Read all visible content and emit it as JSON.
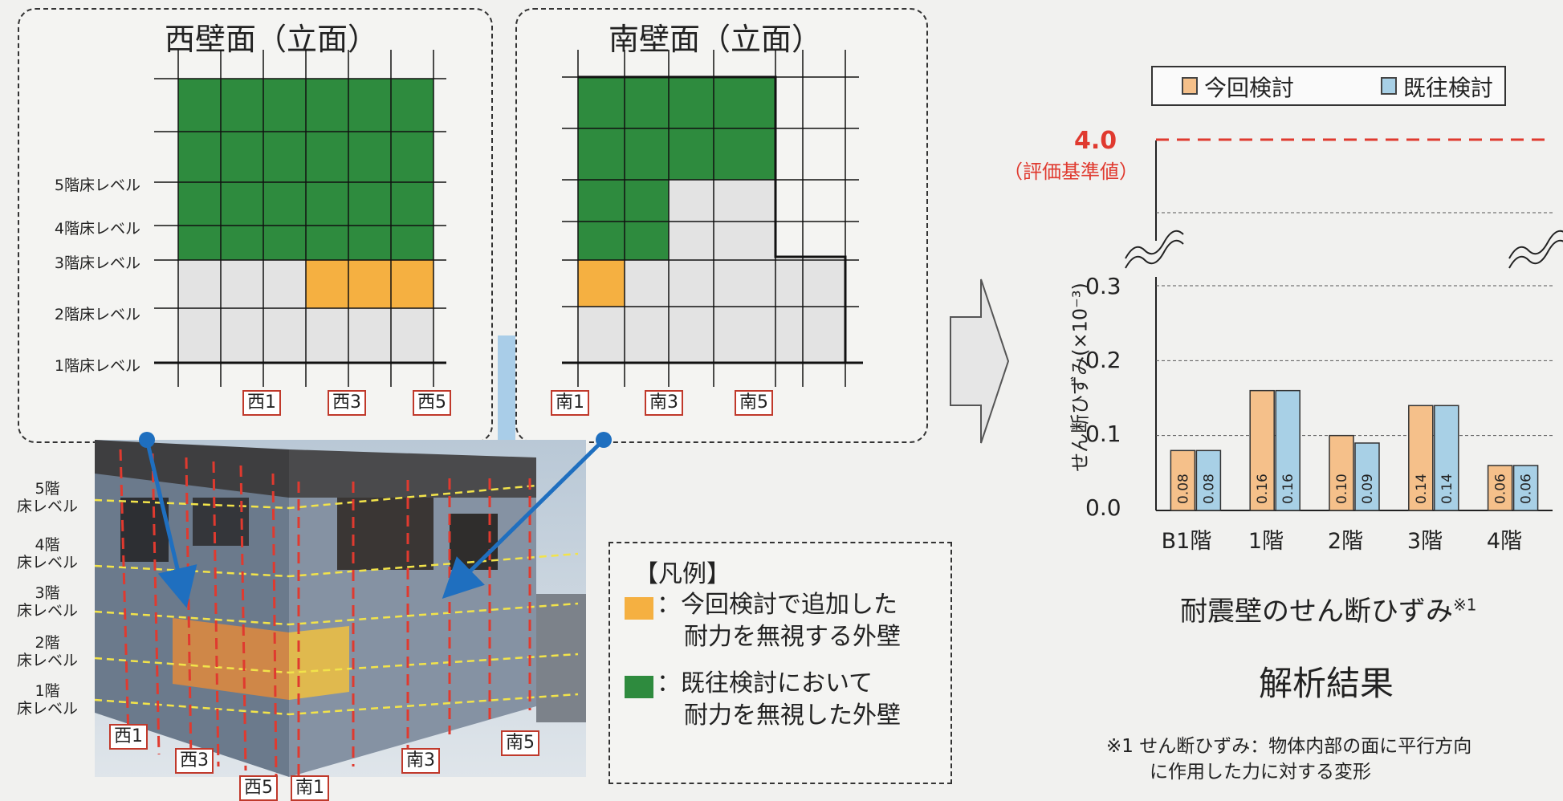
{
  "west_panel": {
    "title": "西壁面（立面）",
    "floor_labels": [
      "5階床レベル",
      "4階床レベル",
      "3階床レベル",
      "2階床レベル",
      "1階床レベル"
    ],
    "axis_labels": [
      "西1",
      "西3",
      "西5"
    ]
  },
  "south_panel": {
    "title": "南壁面（立面）",
    "axis_labels": [
      "南1",
      "南3",
      "南5"
    ]
  },
  "photo": {
    "floor_labels": [
      {
        "line1": "5階",
        "line2": "床レベル"
      },
      {
        "line1": "4階",
        "line2": "床レベル"
      },
      {
        "line1": "3階",
        "line2": "床レベル"
      },
      {
        "line1": "2階",
        "line2": "床レベル"
      },
      {
        "line1": "1階",
        "line2": "床レベル"
      }
    ],
    "axis_labels": [
      "西1",
      "西3",
      "西5",
      "南1",
      "南3",
      "南5"
    ]
  },
  "legend": {
    "title": "【凡例】",
    "items": [
      {
        "color": "#f5b041",
        "line1": "：今回検討で追加した",
        "line2": "耐力を無視する外壁"
      },
      {
        "color": "#2e8b3e",
        "line1": "：既往検討において",
        "line2": "耐力を無視した外壁"
      }
    ]
  },
  "chart_data": {
    "type": "bar",
    "categories": [
      "B1階",
      "1階",
      "2階",
      "3階",
      "4階"
    ],
    "series": [
      {
        "name": "今回検討",
        "values": [
          0.08,
          0.16,
          0.1,
          0.14,
          0.06
        ]
      },
      {
        "name": "既往検討",
        "values": [
          0.08,
          0.16,
          0.09,
          0.14,
          0.06
        ]
      }
    ],
    "data_labels": [
      [
        "0.08",
        "0.16",
        "0.10",
        "0.14",
        "0.06"
      ],
      [
        "0.08",
        "0.16",
        "0.09",
        "0.14",
        "0.06"
      ]
    ],
    "ylabel": "せん断ひずみ(×10⁻³)",
    "yticks": [
      "0.0",
      "0.1",
      "0.2",
      "0.3"
    ],
    "ylim": [
      0,
      0.3
    ],
    "axis_break": true,
    "reference_line": {
      "value": "4.0",
      "label": "（評価基準値）",
      "color": "#e03a2f"
    },
    "legend_placement": "top",
    "title": "耐震壁のせん断ひずみ",
    "title_note": "※1",
    "series_colors": [
      "#f5c08a",
      "#a8d0e6"
    ]
  },
  "result_title": "解析結果",
  "footnote": {
    "line1": "※1 せん断ひずみ：物体内部の面に平行方向",
    "line2": "に作用した力に対する変形"
  },
  "colors": {
    "green": "#2e8b3e",
    "orange": "#f5b041",
    "light_gray": "#e3e3e3",
    "arrow_blue": "#1f6fbf",
    "red_dash": "#e03a2f"
  }
}
